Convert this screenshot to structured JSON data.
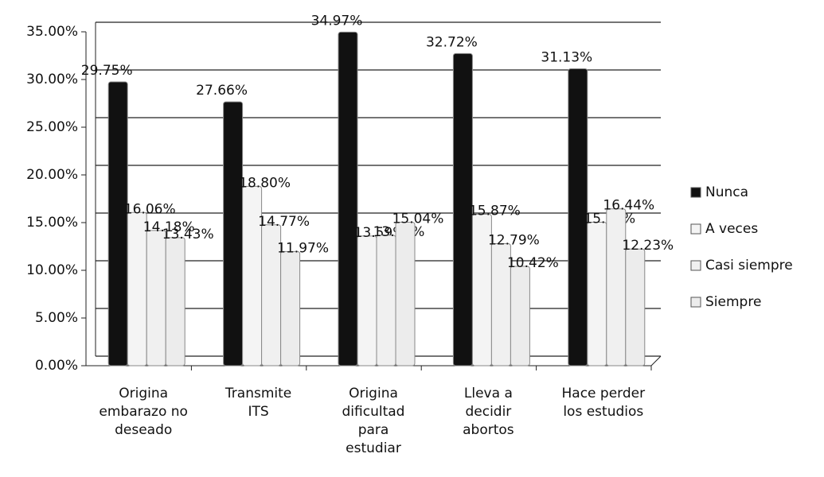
{
  "chart_data": {
    "type": "bar",
    "categories": [
      "Origina embarazo no deseado",
      "Transmite ITS",
      "Origina dificultad para estudiar",
      "Lleva a decidir abortos",
      "Hace perder los estudios"
    ],
    "series": [
      {
        "name": "Nunca",
        "color": "#111111",
        "values": [
          29.75,
          27.66,
          34.97,
          32.72,
          31.13
        ],
        "value_labels": [
          "29.75%",
          "27.66%",
          "34.97%",
          "32.72%",
          "31.13%"
        ]
      },
      {
        "name": "A veces",
        "color": "#f4f4f4",
        "values": [
          16.06,
          18.8,
          13.59,
          15.87,
          15.04
        ],
        "value_labels": [
          "16.06%",
          "18.80%",
          "13.59%",
          "15.87%",
          "15.04%"
        ]
      },
      {
        "name": "Casi siempre",
        "color": "#f0f0f0",
        "values": [
          14.18,
          14.77,
          13.68,
          12.79,
          16.44
        ],
        "value_labels": [
          "14.18%",
          "14.77%",
          "13.68%",
          "12.79%",
          "16.44%"
        ]
      },
      {
        "name": "Siempre",
        "color": "#ececec",
        "values": [
          13.43,
          11.97,
          15.04,
          10.42,
          12.23
        ],
        "value_labels": [
          "13.43%",
          "11.97%",
          "15.04%",
          "10.42%",
          "12.23%"
        ]
      }
    ],
    "ylim": [
      0,
      35
    ],
    "yticks": [
      {
        "value": 0,
        "label": "0.00%"
      },
      {
        "value": 5,
        "label": "5.00%"
      },
      {
        "value": 10,
        "label": "10.00%"
      },
      {
        "value": 15,
        "label": "15.00%"
      },
      {
        "value": 20,
        "label": "20.00%"
      },
      {
        "value": 25,
        "label": "25.00%"
      },
      {
        "value": 30,
        "label": "30.00%"
      },
      {
        "value": 35,
        "label": "35.00%"
      }
    ],
    "grid": true,
    "legend": "right"
  }
}
